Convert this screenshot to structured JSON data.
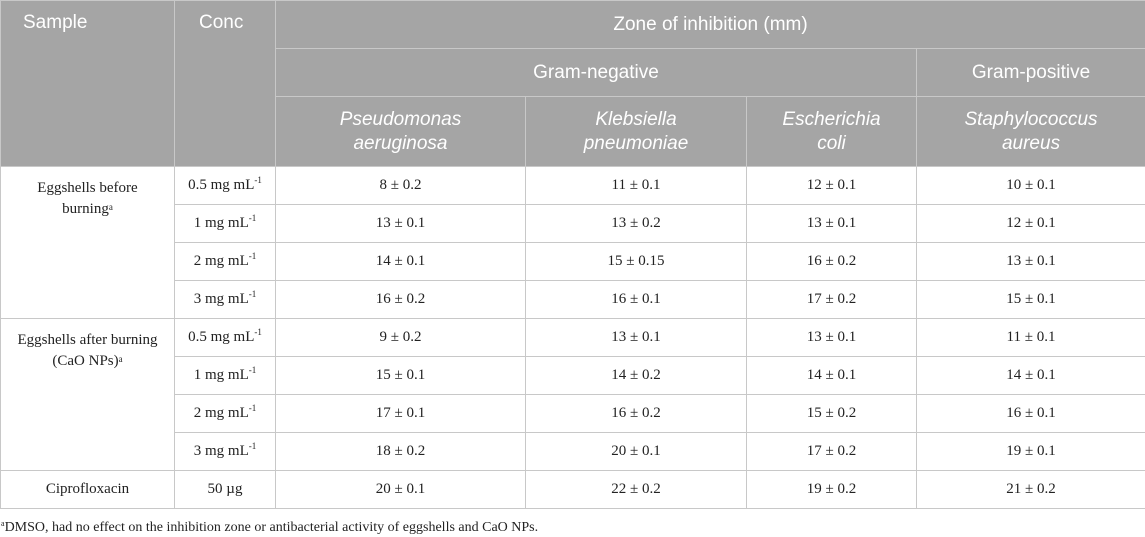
{
  "header": {
    "sample": "Sample",
    "conc": "Conc",
    "zone": "Zone of inhibition (mm)",
    "gram_negative": "Gram-negative",
    "gram_positive": "Gram-positive",
    "species": [
      [
        "Pseudomonas",
        "aeruginosa"
      ],
      [
        "Klebsiella",
        "pneumoniae"
      ],
      [
        "Escherichia",
        "coli"
      ],
      [
        "Staphylococcus",
        "aureus"
      ]
    ]
  },
  "groups": [
    {
      "sample_lines": [
        "Eggshells before",
        "burning"
      ],
      "sample_sup": "a",
      "rows": [
        {
          "conc": "0.5 mg mL",
          "sup": "-1",
          "values": [
            "8 ± 0.2",
            "11 ± 0.1",
            "12 ± 0.1",
            "10 ± 0.1"
          ]
        },
        {
          "conc": "1 mg mL",
          "sup": "-1",
          "values": [
            "13 ± 0.1",
            "13 ± 0.2",
            "13 ± 0.1",
            "12 ± 0.1"
          ]
        },
        {
          "conc": "2 mg mL",
          "sup": "-1",
          "values": [
            "14 ± 0.1",
            "15 ± 0.15",
            "16  ± 0.2",
            "13 ± 0.1"
          ]
        },
        {
          "conc": "3 mg mL",
          "sup": "-1",
          "values": [
            "16 ± 0.2",
            "16 ± 0.1",
            "17  ± 0.2",
            "15 ± 0.1"
          ]
        }
      ]
    },
    {
      "sample_lines": [
        "Eggshells after burning",
        "(CaO NPs)"
      ],
      "sample_sup": "a",
      "rows": [
        {
          "conc": "0.5 mg mL",
          "sup": "-1",
          "values": [
            "9 ± 0.2",
            "13 ± 0.1",
            "13 ± 0.1",
            "11 ± 0.1"
          ]
        },
        {
          "conc": "1 mg mL",
          "sup": "-1",
          "values": [
            "15 ± 0.1",
            "14 ± 0.2",
            "14 ± 0.1",
            "14 ± 0.1"
          ]
        },
        {
          "conc": "2 mg mL",
          "sup": "-1",
          "values": [
            "17 ± 0.1",
            "16 ± 0.2",
            "15  ± 0.2",
            "16 ± 0.1"
          ]
        },
        {
          "conc": "3 mg mL",
          "sup": "-1",
          "values": [
            "18 ± 0.2",
            "20 ± 0.1",
            "17  ± 0.2",
            "19 ± 0.1"
          ]
        }
      ]
    },
    {
      "sample_lines": [
        "Ciprofloxacin"
      ],
      "sample_sup": "",
      "rows": [
        {
          "conc": "50 µg",
          "sup": "",
          "values": [
            "20  ±  0.1",
            "22  ±  0.2",
            "19  ± 0.2",
            "21  ±  0.2"
          ]
        }
      ]
    }
  ],
  "footnote": {
    "marker": "a",
    "text": "DMSO, had no effect on the inhibition zone or antibacterial activity of eggshells and CaO NPs."
  }
}
